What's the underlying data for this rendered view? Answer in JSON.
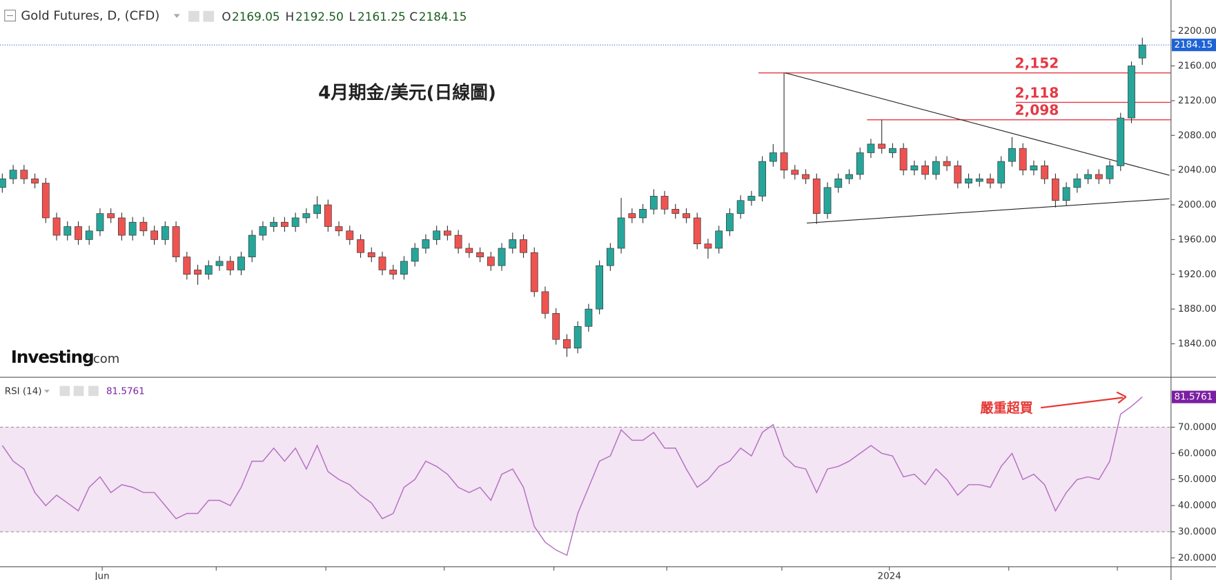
{
  "header": {
    "title": "Gold Futures, D, (CFD)",
    "o_label": "O",
    "o": "2169.05",
    "h_label": "H",
    "h": "2192.50",
    "l_label": "L",
    "l": "2161.25",
    "c_label": "C",
    "c": "2184.15"
  },
  "logo": {
    "brand": "Investing",
    "suffix": ".com"
  },
  "chart_data": [
    {
      "type": "candlestick",
      "title": "4月期金/美元(日線圖)",
      "up_color": "#26a69a",
      "down_color": "#ef5350",
      "xlim": [
        -0.214,
        107.643
      ],
      "ylim": [
        1801.4,
        2235.9
      ],
      "yticks": [
        {
          "value": 2200,
          "label": "2200.00"
        },
        {
          "value": 2160,
          "label": "2160.00"
        },
        {
          "value": 2120,
          "label": "2120.00"
        },
        {
          "value": 2080,
          "label": "2080.00"
        },
        {
          "value": 2040,
          "label": "2040.00"
        },
        {
          "value": 2000,
          "label": "2000.00"
        },
        {
          "value": 1960,
          "label": "1960.00"
        },
        {
          "value": 1920,
          "label": "1920.00"
        },
        {
          "value": 1880,
          "label": "1880.00"
        },
        {
          "value": 1840,
          "label": "1840.00"
        }
      ],
      "open": [
        2020,
        2030,
        2040,
        2030,
        2025,
        1985,
        1965,
        1975,
        1960,
        1970,
        1990,
        1985,
        1965,
        1980,
        1970,
        1960,
        1975,
        1940,
        1925,
        1920,
        1930,
        1935,
        1925,
        1940,
        1965,
        1975,
        1980,
        1975,
        1985,
        1990,
        2000,
        1975,
        1970,
        1960,
        1945,
        1940,
        1925,
        1920,
        1935,
        1950,
        1960,
        1970,
        1965,
        1950,
        1945,
        1940,
        1930,
        1950,
        1960,
        1945,
        1900,
        1875,
        1845,
        1835,
        1860,
        1880,
        1930,
        1950,
        1990,
        1985,
        1995,
        2010,
        1995,
        1990,
        1985,
        1955,
        1950,
        1970,
        1990,
        2005,
        2010,
        2050,
        2060,
        2040,
        2035,
        2030,
        1990,
        2020,
        2030,
        2035,
        2060,
        2070,
        2060,
        2065,
        2040,
        2045,
        2035,
        2050,
        2045,
        2025,
        2027,
        2030,
        2025,
        2050,
        2065,
        2040,
        2045,
        2030,
        2005,
        2020,
        2030,
        2035,
        2030,
        2045,
        2100,
        2169.05
      ],
      "high": [
        2036,
        2046,
        2046,
        2036,
        2031,
        1991,
        1981,
        1981,
        1976,
        1996,
        1996,
        1991,
        1986,
        1986,
        1976,
        1981,
        1981,
        1946,
        1931,
        1936,
        1941,
        1941,
        1946,
        1971,
        1981,
        1986,
        1986,
        1991,
        1996,
        2010,
        2006,
        1981,
        1976,
        1966,
        1951,
        1946,
        1931,
        1941,
        1956,
        1966,
        1976,
        1976,
        1971,
        1956,
        1951,
        1946,
        1956,
        1968,
        1966,
        1951,
        1906,
        1881,
        1851,
        1866,
        1886,
        1936,
        1956,
        2008,
        1996,
        2001,
        2018,
        2016,
        2001,
        1996,
        1991,
        1961,
        1976,
        1996,
        2011,
        2016,
        2056,
        2070,
        2152,
        2046,
        2041,
        2036,
        2026,
        2036,
        2041,
        2066,
        2076,
        2098,
        2071,
        2071,
        2051,
        2051,
        2056,
        2056,
        2051,
        2036,
        2036,
        2036,
        2056,
        2078,
        2071,
        2051,
        2051,
        2036,
        2026,
        2036,
        2041,
        2041,
        2051,
        2106,
        2165,
        2192.5
      ],
      "low": [
        2014,
        2024,
        2024,
        2019,
        1979,
        1959,
        1959,
        1954,
        1954,
        1964,
        1979,
        1959,
        1959,
        1964,
        1954,
        1954,
        1934,
        1914,
        1908,
        1914,
        1924,
        1919,
        1919,
        1934,
        1959,
        1969,
        1969,
        1969,
        1979,
        1984,
        1969,
        1964,
        1954,
        1939,
        1934,
        1919,
        1914,
        1914,
        1929,
        1944,
        1954,
        1959,
        1944,
        1939,
        1934,
        1924,
        1924,
        1944,
        1939,
        1894,
        1869,
        1839,
        1825,
        1829,
        1854,
        1874,
        1924,
        1944,
        1979,
        1979,
        1989,
        1989,
        1984,
        1979,
        1949,
        1938,
        1944,
        1964,
        1984,
        1999,
        2004,
        2044,
        2030,
        2029,
        2024,
        1978,
        1984,
        2014,
        2024,
        2029,
        2054,
        2059,
        2054,
        2034,
        2034,
        2029,
        2029,
        2039,
        2019,
        2019,
        2021,
        2019,
        2019,
        2044,
        2034,
        2034,
        2024,
        1997,
        1999,
        2014,
        2024,
        2024,
        2024,
        2039,
        2094,
        2161.25
      ],
      "close": [
        2030,
        2040,
        2030,
        2025,
        1985,
        1965,
        1975,
        1960,
        1970,
        1990,
        1985,
        1965,
        1980,
        1970,
        1960,
        1975,
        1940,
        1920,
        1920,
        1930,
        1935,
        1925,
        1940,
        1965,
        1975,
        1980,
        1975,
        1985,
        1990,
        2000,
        1975,
        1970,
        1960,
        1945,
        1940,
        1925,
        1920,
        1935,
        1950,
        1960,
        1970,
        1965,
        1950,
        1945,
        1940,
        1930,
        1950,
        1960,
        1945,
        1900,
        1875,
        1845,
        1835,
        1860,
        1880,
        1930,
        1950,
        1985,
        1985,
        1995,
        2010,
        1995,
        1990,
        1985,
        1955,
        1950,
        1970,
        1990,
        2005,
        2010,
        2050,
        2060,
        2040,
        2035,
        2030,
        1990,
        2020,
        2030,
        2035,
        2060,
        2070,
        2065,
        2065,
        2040,
        2045,
        2035,
        2050,
        2045,
        2025,
        2030,
        2030,
        2025,
        2050,
        2065,
        2040,
        2045,
        2030,
        2005,
        2020,
        2030,
        2035,
        2030,
        2045,
        2100,
        2160,
        2184.15
      ],
      "levels": [
        {
          "value": 2152,
          "label": "2,152"
        },
        {
          "value": 2118,
          "label": "2,118"
        },
        {
          "value": 2098,
          "label": "2,098"
        }
      ],
      "level_color": "#e53945",
      "trendlines": [
        {
          "x": [
            72.1,
            107.5
          ],
          "y": [
            2152,
            2034
          ]
        },
        {
          "x": [
            74.1,
            107.5
          ],
          "y": [
            1979,
            2007
          ]
        }
      ]
    },
    {
      "type": "line",
      "ylim": [
        16.6,
        88.5
      ],
      "xlim": [
        -0.214,
        107.643
      ],
      "yticks": [
        {
          "value": 70,
          "label": "70.0000"
        },
        {
          "value": 60,
          "label": "60.0000"
        },
        {
          "value": 50,
          "label": "50.0000"
        },
        {
          "value": 40,
          "label": "40.0000"
        },
        {
          "value": 30,
          "label": "30.0000"
        },
        {
          "value": 20,
          "label": "20.0000"
        }
      ],
      "xticks": [
        {
          "value": 9.2,
          "label": "Jun"
        },
        {
          "value": 19.7,
          "label": null
        },
        {
          "value": 29.8,
          "label": null
        },
        {
          "value": 40.7,
          "label": null
        },
        {
          "value": 50.8,
          "label": null
        },
        {
          "value": 61.2,
          "label": null
        },
        {
          "value": 71.8,
          "label": null
        },
        {
          "value": 81.7,
          "label": "2024"
        },
        {
          "value": 92.7,
          "label": null
        },
        {
          "value": 102.7,
          "label": null
        }
      ],
      "band": [
        30,
        70
      ],
      "band_color": "#f3e5f3",
      "annotation": "嚴重超買",
      "series": [
        {
          "name": "RSI (14)",
          "color": "#b56fc4",
          "values": [
            63,
            57,
            54,
            45,
            40,
            44,
            41,
            38,
            47,
            51,
            45,
            48,
            47,
            45,
            45,
            40,
            35,
            37,
            37,
            42,
            42,
            40,
            47,
            57,
            57,
            62,
            57,
            62,
            54,
            63,
            53,
            50,
            48,
            44,
            41,
            35,
            37,
            47,
            50,
            57,
            55,
            52,
            47,
            45,
            47,
            42,
            52,
            54,
            47,
            32,
            26,
            23,
            21,
            37,
            47,
            57,
            59,
            69,
            65,
            65,
            68,
            62,
            62,
            54,
            47,
            50,
            55,
            57,
            62,
            59,
            68,
            71,
            59,
            55,
            54,
            45,
            54,
            55,
            57,
            60,
            63,
            60,
            59,
            51,
            52,
            48,
            54,
            50,
            44,
            48,
            48,
            47,
            55,
            60,
            50,
            52,
            48,
            38,
            45,
            50,
            51,
            50,
            57,
            75,
            78,
            81.5761
          ]
        }
      ]
    }
  ]
}
